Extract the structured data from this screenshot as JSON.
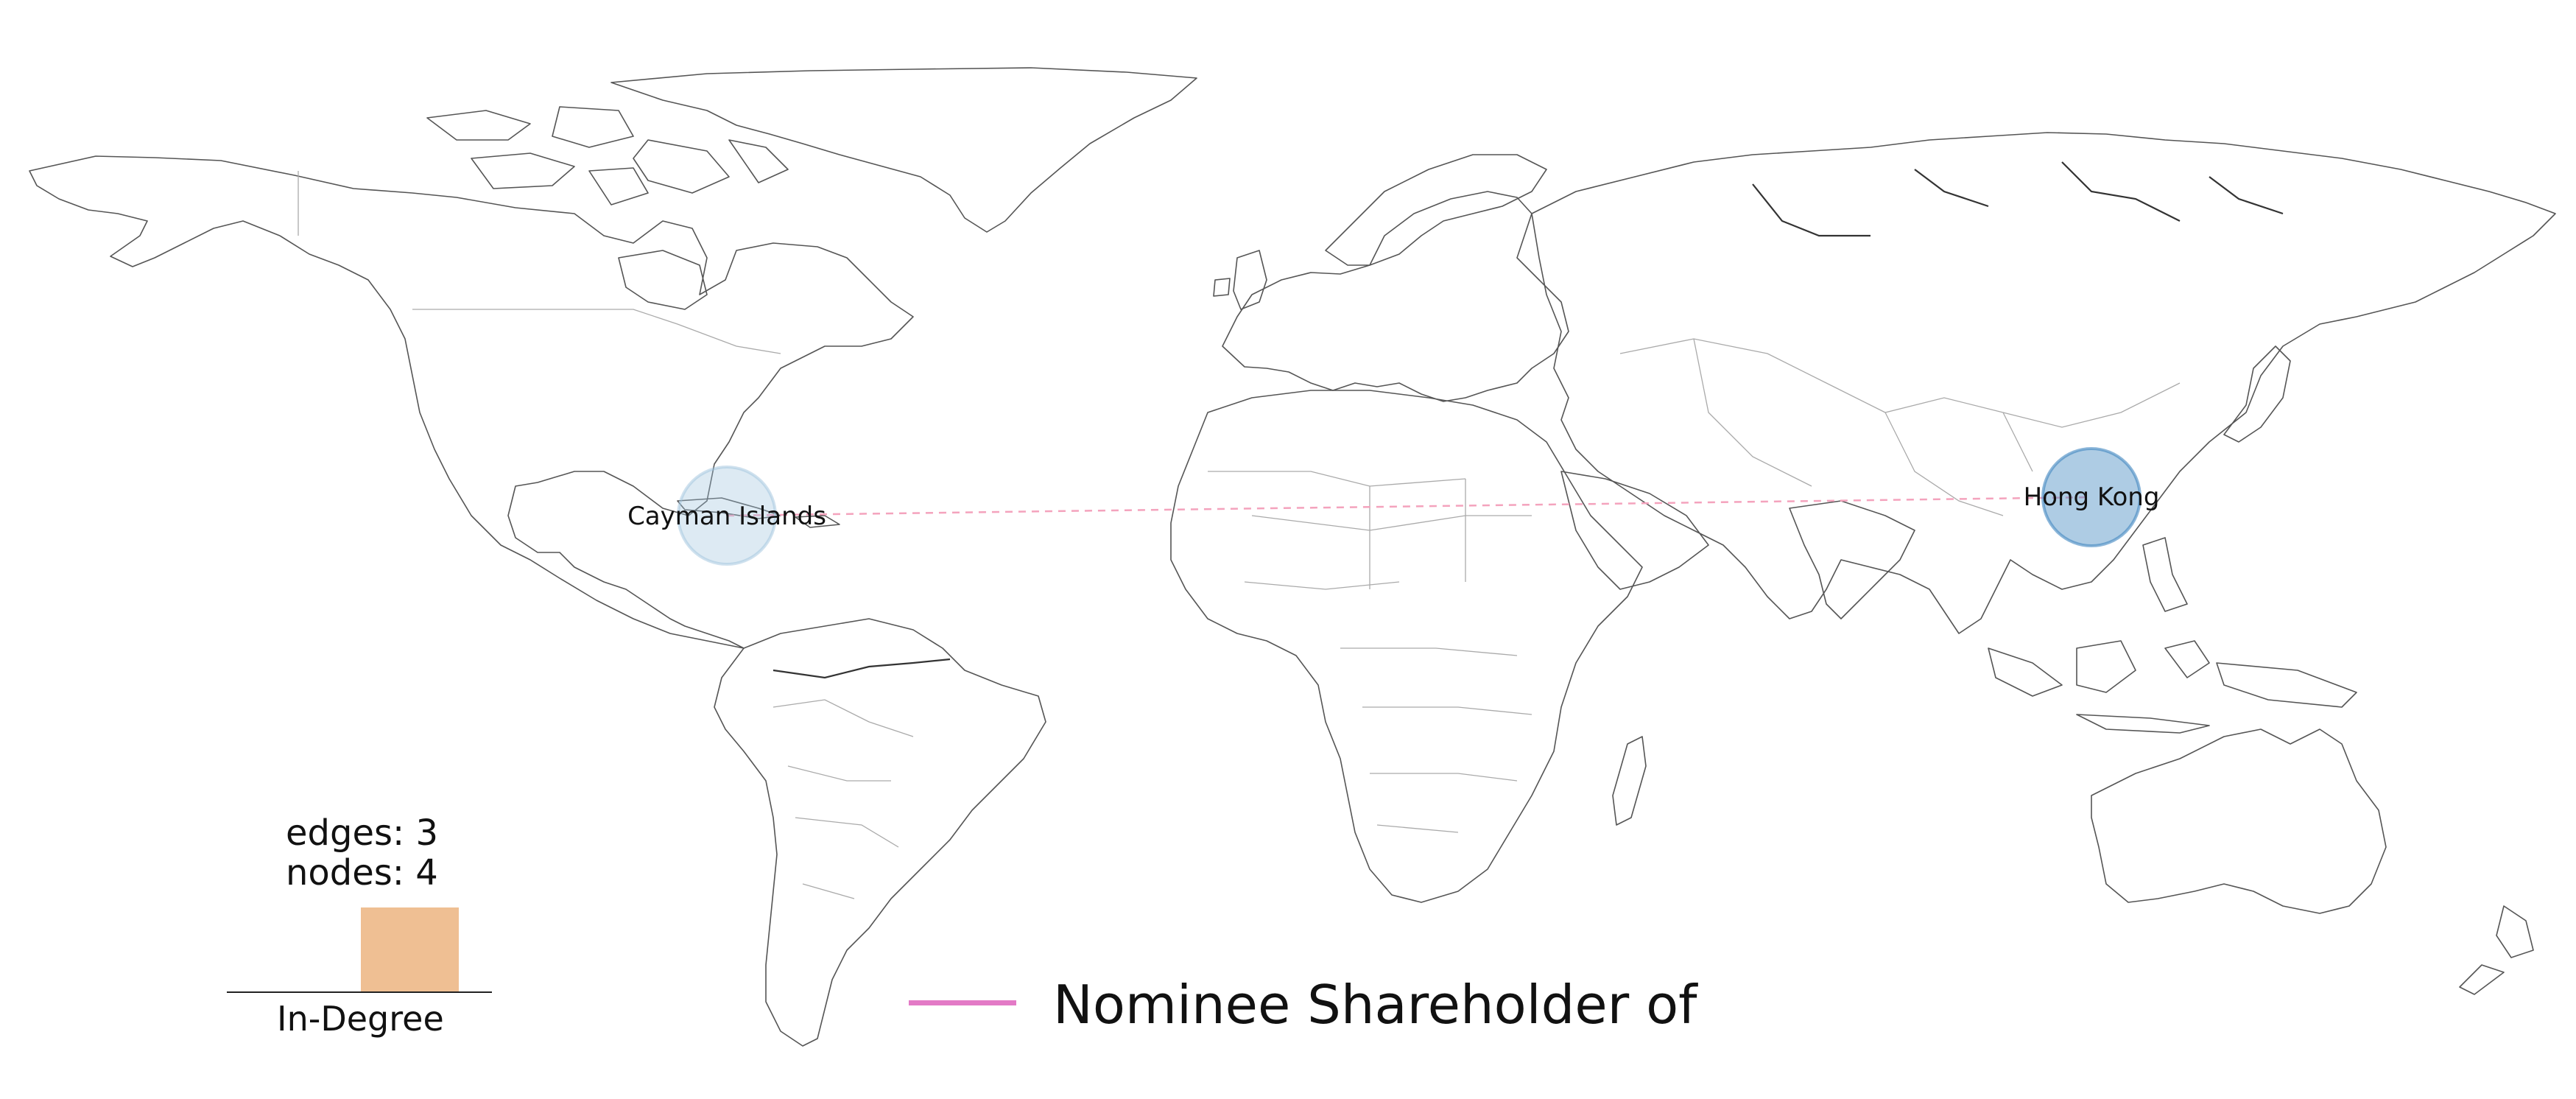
{
  "map": {
    "nodes": [
      {
        "id": "cayman",
        "label": "Cayman Islands",
        "color": "#9fc3de",
        "opacity": 0.35
      },
      {
        "id": "hongkong",
        "label": "Hong Kong",
        "color": "#3f86bf",
        "opacity": 0.45
      }
    ],
    "edge_color": "#f4a3bd"
  },
  "stats": {
    "edges": "edges: 3",
    "nodes": "nodes: 4"
  },
  "indegree": {
    "label": "In-Degree",
    "bar_color": "#efbf93"
  },
  "legend": {
    "label": "Nominee Shareholder of",
    "color": "#e37ac6"
  }
}
